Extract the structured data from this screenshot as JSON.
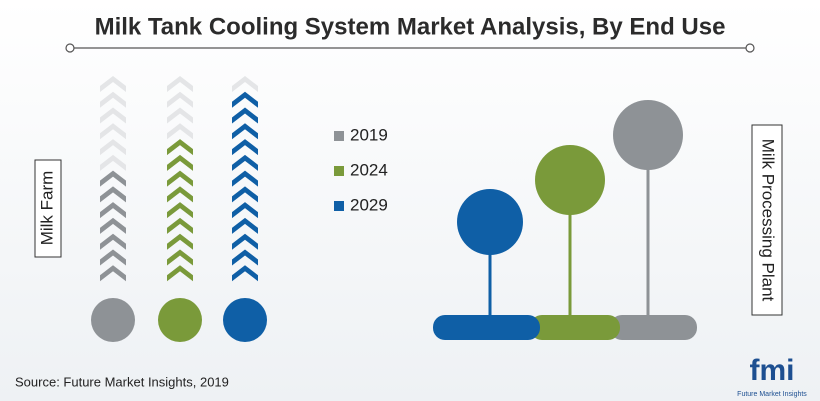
{
  "chart_data": {
    "type": "chevron",
    "title": "Milk Tank Cooling System Market Analysis, By End Use",
    "categories": [
      "Milk Farm"
    ],
    "ylim": [
      0,
      13
    ],
    "series": [
      {
        "name": "2019",
        "color": "#8e9296",
        "values": [
          7
        ]
      },
      {
        "name": "2024",
        "color": "#7a9a3a",
        "values": [
          9
        ]
      },
      {
        "name": "2029",
        "color": "#0f5fa6",
        "values": [
          12
        ]
      }
    ],
    "side_label": "Milk Processing Plant",
    "source": "Source: Future Market Insights, 2019",
    "logo": {
      "text": "fmi",
      "caption": "Future Market Insights"
    }
  }
}
